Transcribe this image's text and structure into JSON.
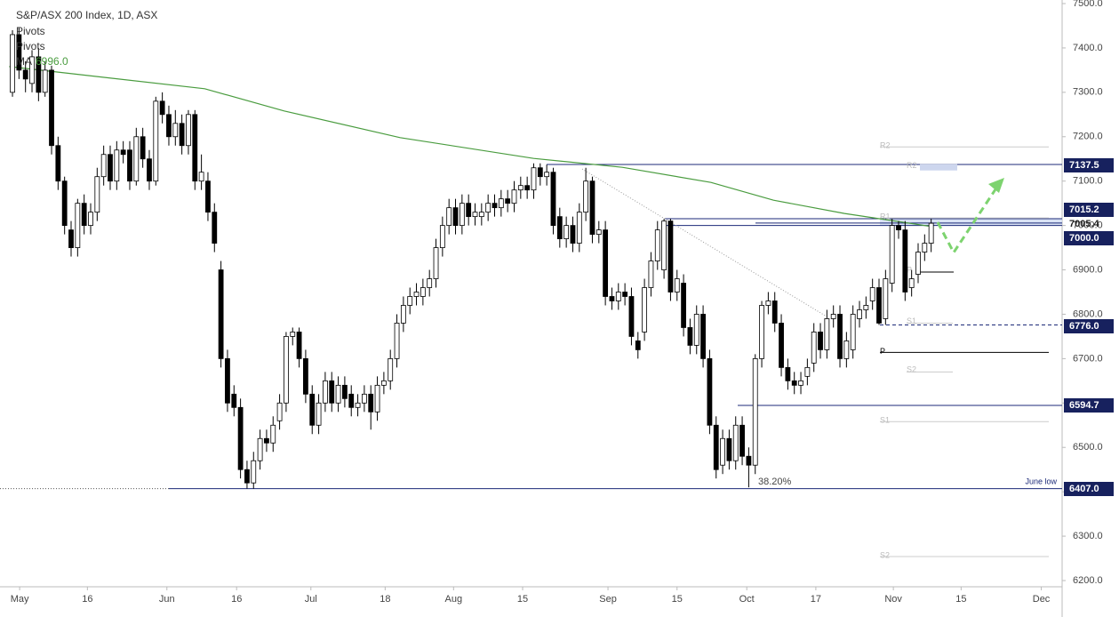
{
  "chart_data": {
    "type": "candlestick",
    "title": "S&P/ASX 200 Index, 1D, ASX",
    "indicators": [
      "Pivots",
      "Pivots"
    ],
    "ma": {
      "name": "MA",
      "last": {
        "value": 6996,
        "label": "6996.0"
      },
      "color": "#4a9c3f",
      "x": [
        -0.5,
        29.5,
        41.7,
        59.5,
        80,
        93.6,
        107.2,
        116.8,
        127.7,
        141.3
      ],
      "values": [
        7358,
        7308,
        7258,
        7198,
        7151,
        7131,
        7097,
        7057,
        7027,
        6997
      ]
    },
    "open": [
      7300,
      7430,
      7350,
      7320,
      7380,
      7300,
      7350,
      7180,
      7100,
      6990,
      6950,
      7050,
      7000,
      7030,
      7110,
      7160,
      7100,
      7170,
      7170,
      7100,
      7200,
      7150,
      7100,
      7280,
      7250,
      7200,
      7230,
      7180,
      7250,
      7100,
      7100,
      7030,
      6900,
      6700,
      6620,
      6590,
      6450,
      6420,
      6470,
      6520,
      6510,
      6560,
      6600,
      6750,
      6760,
      6700,
      6620,
      6550,
      6600,
      6650,
      6600,
      6640,
      6620,
      6590,
      6600,
      6620,
      6580,
      6640,
      6650,
      6700,
      6780,
      6820,
      6840,
      6840,
      6860,
      6880,
      6950,
      7000,
      7040,
      7000,
      7050,
      7020,
      7020,
      7030,
      7050,
      7040,
      7060,
      7050,
      7080,
      7090,
      7080,
      7130,
      7110,
      7120,
      7020,
      6970,
      7000,
      6960,
      7030,
      7100,
      6980,
      6990,
      6840,
      6830,
      6850,
      6840,
      6740,
      6760,
      6860,
      6920,
      6900,
      7010,
      6850,
      6870,
      6770,
      6730,
      6800,
      6700,
      6550,
      6460,
      6520,
      6470,
      6550,
      6480,
      6460,
      6700,
      6820,
      6830,
      6780,
      6680,
      6650,
      6640,
      6660,
      6690,
      6760,
      6720,
      6790,
      6800,
      6700,
      6720,
      6790,
      6810,
      6830,
      6860,
      6790,
      6870,
      7000,
      6990,
      6860,
      6890,
      6940,
      6960
    ],
    "high": [
      7440,
      7445,
      7370,
      7395,
      7400,
      7370,
      7360,
      7200,
      7110,
      7010,
      7060,
      7070,
      7050,
      7130,
      7180,
      7180,
      7190,
      7190,
      7190,
      7220,
      7220,
      7170,
      7290,
      7300,
      7270,
      7260,
      7250,
      7260,
      7260,
      7160,
      7120,
      7050,
      6920,
      6720,
      6640,
      6610,
      6470,
      6490,
      6540,
      6540,
      6570,
      6620,
      6760,
      6770,
      6770,
      6720,
      6640,
      6620,
      6670,
      6670,
      6660,
      6660,
      6640,
      6620,
      6640,
      6640,
      6660,
      6670,
      6720,
      6800,
      6840,
      6860,
      6870,
      6880,
      6900,
      6970,
      7020,
      7060,
      7060,
      7070,
      7070,
      7050,
      7050,
      7070,
      7070,
      7080,
      7080,
      7100,
      7110,
      7110,
      7140,
      7140,
      7137,
      7130,
      7040,
      7020,
      7020,
      7050,
      7130,
      7110,
      7010,
      7010,
      6860,
      6870,
      6870,
      6860,
      6760,
      6880,
      6940,
      7010,
      7015,
      7015,
      6900,
      6890,
      6790,
      6820,
      6820,
      6720,
      6570,
      6540,
      6540,
      6570,
      6570,
      6500,
      6710,
      6830,
      6850,
      6850,
      6800,
      6700,
      6670,
      6670,
      6700,
      6780,
      6780,
      6810,
      6820,
      6820,
      6760,
      6820,
      6830,
      6840,
      6880,
      6880,
      6900,
      7015,
      7010,
      7010,
      6900,
      6960,
      6980,
      7015
    ],
    "low": [
      7290,
      7330,
      7300,
      7300,
      7280,
      7290,
      7160,
      7080,
      6980,
      6930,
      6930,
      6980,
      6980,
      7010,
      7090,
      7080,
      7080,
      7140,
      7080,
      7090,
      7130,
      7080,
      7090,
      7230,
      7180,
      7180,
      7160,
      7160,
      7080,
      7080,
      7010,
      6940,
      6680,
      6580,
      6570,
      6430,
      6407,
      6407,
      6450,
      6490,
      6490,
      6540,
      6580,
      6730,
      6680,
      6600,
      6530,
      6530,
      6580,
      6580,
      6580,
      6590,
      6570,
      6570,
      6580,
      6540,
      6560,
      6620,
      6630,
      6680,
      6760,
      6800,
      6820,
      6820,
      6840,
      6860,
      6930,
      6980,
      6980,
      6980,
      7000,
      7000,
      7000,
      7010,
      7020,
      7020,
      7030,
      7030,
      7060,
      7060,
      7060,
      7090,
      7090,
      6980,
      6950,
      6950,
      6940,
      6940,
      7010,
      6960,
      6960,
      6820,
      6810,
      6810,
      6820,
      6730,
      6700,
      6740,
      6840,
      6900,
      6880,
      6830,
      6830,
      6750,
      6710,
      6710,
      6680,
      6530,
      6430,
      6440,
      6450,
      6450,
      6460,
      6410,
      6440,
      6680,
      6800,
      6760,
      6660,
      6630,
      6620,
      6620,
      6640,
      6670,
      6700,
      6700,
      6770,
      6680,
      6680,
      6700,
      6770,
      6790,
      6810,
      6776,
      6776,
      6850,
      6970,
      6830,
      6840,
      6870,
      6920,
      6940
    ],
    "close": [
      7430,
      7350,
      7330,
      7380,
      7300,
      7350,
      7180,
      7100,
      7000,
      6950,
      7050,
      7000,
      7030,
      7110,
      7160,
      7100,
      7170,
      7160,
      7100,
      7200,
      7150,
      7100,
      7280,
      7250,
      7200,
      7230,
      7180,
      7250,
      7100,
      7120,
      7030,
      6960,
      6700,
      6600,
      6590,
      6450,
      6420,
      6470,
      6520,
      6510,
      6550,
      6600,
      6750,
      6760,
      6700,
      6620,
      6550,
      6600,
      6650,
      6600,
      6640,
      6610,
      6590,
      6600,
      6620,
      6580,
      6640,
      6650,
      6700,
      6780,
      6820,
      6840,
      6850,
      6860,
      6880,
      6950,
      7000,
      7040,
      7000,
      7050,
      7020,
      7030,
      7030,
      7050,
      7040,
      7060,
      7050,
      7080,
      7090,
      7080,
      7130,
      7110,
      7120,
      7000,
      6970,
      7000,
      6960,
      7030,
      7100,
      6980,
      6990,
      6840,
      6830,
      6850,
      6840,
      6750,
      6720,
      6860,
      6920,
      6990,
      7010,
      6850,
      6880,
      6770,
      6730,
      6800,
      6700,
      6550,
      6450,
      6520,
      6470,
      6550,
      6480,
      6460,
      6700,
      6820,
      6830,
      6780,
      6680,
      6650,
      6640,
      6650,
      6680,
      6760,
      6720,
      6790,
      6800,
      6700,
      6740,
      6800,
      6810,
      6820,
      6860,
      6780,
      6880,
      7000,
      6990,
      6850,
      6880,
      6940,
      6960,
      7005
    ],
    "xlim": [
      -0.55,
      161.1
    ],
    "xticks": [
      {
        "value": 1.1,
        "label": "May"
      },
      {
        "value": 11.5,
        "label": "16"
      },
      {
        "value": 23.7,
        "label": "Jun"
      },
      {
        "value": 34.4,
        "label": "16"
      },
      {
        "value": 45.8,
        "label": "Jul"
      },
      {
        "value": 57.2,
        "label": "18"
      },
      {
        "value": 67.7,
        "label": "Aug"
      },
      {
        "value": 78.3,
        "label": "15"
      },
      {
        "value": 91.4,
        "label": "Sep"
      },
      {
        "value": 102.0,
        "label": "15"
      },
      {
        "value": 112.7,
        "label": "Oct"
      },
      {
        "value": 123.3,
        "label": "17"
      },
      {
        "value": 135.2,
        "label": "Nov"
      },
      {
        "value": 145.6,
        "label": "15"
      },
      {
        "value": 157.9,
        "label": "Dec"
      }
    ],
    "ylim": [
      6186,
      7508
    ],
    "yticks": [
      {
        "value": 6200,
        "label": "6200.0"
      },
      {
        "value": 6300,
        "label": "6300.0"
      },
      {
        "value": 6400,
        "label": "6400.0"
      },
      {
        "value": 6500,
        "label": "6500.0"
      },
      {
        "value": 6600,
        "label": "6600.0"
      },
      {
        "value": 6700,
        "label": "6700.0"
      },
      {
        "value": 6800,
        "label": "6800.0"
      },
      {
        "value": 6900,
        "label": "6900.0"
      },
      {
        "value": 7000,
        "label": "7000.0"
      },
      {
        "value": 7100,
        "label": "7100.0"
      },
      {
        "value": 7200,
        "label": "7200.0"
      },
      {
        "value": 7300,
        "label": "7300.0"
      },
      {
        "value": 7400,
        "label": "7400.0"
      },
      {
        "value": 7500,
        "label": "7500.0"
      }
    ],
    "levels": [
      {
        "value": 7137.5,
        "label": "7137.5"
      },
      {
        "value": 7015.2,
        "label": "7015.2"
      },
      {
        "value": 7005.4,
        "label": "7005.4"
      },
      {
        "value": 7000,
        "label": "7000.0"
      },
      {
        "value": 6776,
        "label": "6776.0"
      },
      {
        "value": 6594.7,
        "label": "6594.7"
      },
      {
        "value": 6407,
        "label": "6407.0"
      }
    ],
    "pivots_monthly": [
      {
        "name": "R2",
        "value": 7177
      },
      {
        "name": "R1",
        "value": 7017
      },
      {
        "name": "P",
        "value": 6714
      },
      {
        "name": "S1",
        "value": 6558
      },
      {
        "name": "S2",
        "value": 6254
      }
    ],
    "pivots_weekly": [
      {
        "name": "R2",
        "value": 7130
      },
      {
        "name": "P",
        "value": 6895
      },
      {
        "name": "S1",
        "value": 6780
      },
      {
        "name": "S2",
        "value": 6670
      }
    ],
    "annotations": [
      "38.20%",
      "June low"
    ]
  }
}
